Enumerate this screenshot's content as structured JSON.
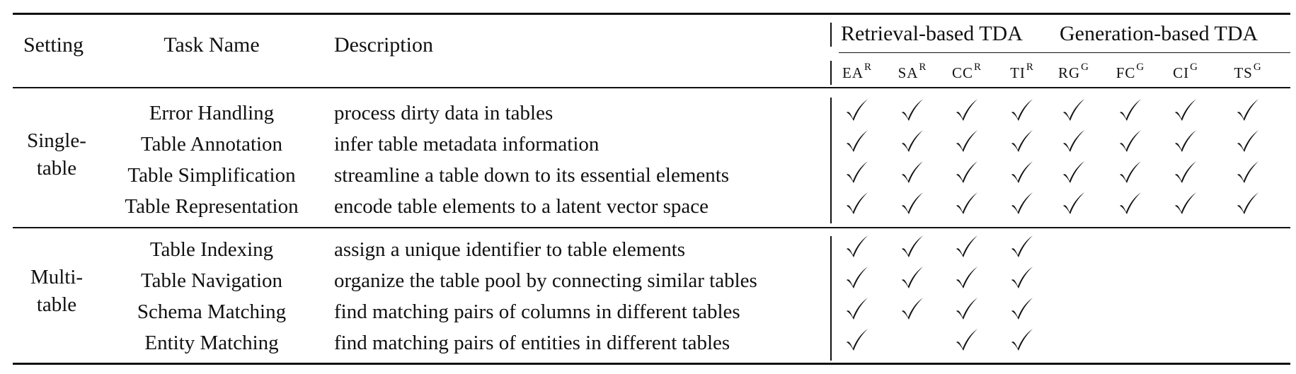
{
  "header": {
    "setting": "Setting",
    "task_name": "Task Name",
    "description": "Description",
    "group_retrieval": "Retrieval-based TDA",
    "group_generation": "Generation-based TDA",
    "columns": [
      {
        "base": "EA",
        "sup": "R"
      },
      {
        "base": "SA",
        "sup": "R"
      },
      {
        "base": "CC",
        "sup": "R"
      },
      {
        "base": "TI",
        "sup": "R"
      },
      {
        "base": "RG",
        "sup": "G"
      },
      {
        "base": "FC",
        "sup": "G"
      },
      {
        "base": "CI",
        "sup": "G"
      },
      {
        "base": "TS",
        "sup": "G"
      }
    ]
  },
  "sections": [
    {
      "setting_lines": [
        "Single-",
        "table"
      ],
      "rows": [
        {
          "task": "Error Handling",
          "description": "process dirty data in tables",
          "checks": [
            true,
            true,
            true,
            true,
            true,
            true,
            true,
            true
          ]
        },
        {
          "task": "Table Annotation",
          "description": "infer table metadata information",
          "checks": [
            true,
            true,
            true,
            true,
            true,
            true,
            true,
            true
          ]
        },
        {
          "task": "Table Simplification",
          "description": "streamline a table down to its essential elements",
          "checks": [
            true,
            true,
            true,
            true,
            true,
            true,
            true,
            true
          ]
        },
        {
          "task": "Table Representation",
          "description": "encode table elements to a latent vector space",
          "checks": [
            true,
            true,
            true,
            true,
            true,
            true,
            true,
            true
          ]
        }
      ]
    },
    {
      "setting_lines": [
        "Multi-",
        "table"
      ],
      "rows": [
        {
          "task": "Table Indexing",
          "description": "assign a unique identifier to table elements",
          "checks": [
            true,
            true,
            true,
            true,
            false,
            false,
            false,
            false
          ]
        },
        {
          "task": "Table Navigation",
          "description": "organize the table pool by connecting similar tables",
          "checks": [
            true,
            true,
            true,
            true,
            false,
            false,
            false,
            false
          ]
        },
        {
          "task": "Schema Matching",
          "description": "find matching pairs of columns in different tables",
          "checks": [
            true,
            true,
            true,
            true,
            false,
            false,
            false,
            false
          ]
        },
        {
          "task": "Entity Matching",
          "description": "find matching pairs of entities in different tables",
          "checks": [
            true,
            false,
            true,
            true,
            false,
            false,
            false,
            false
          ]
        }
      ]
    }
  ]
}
